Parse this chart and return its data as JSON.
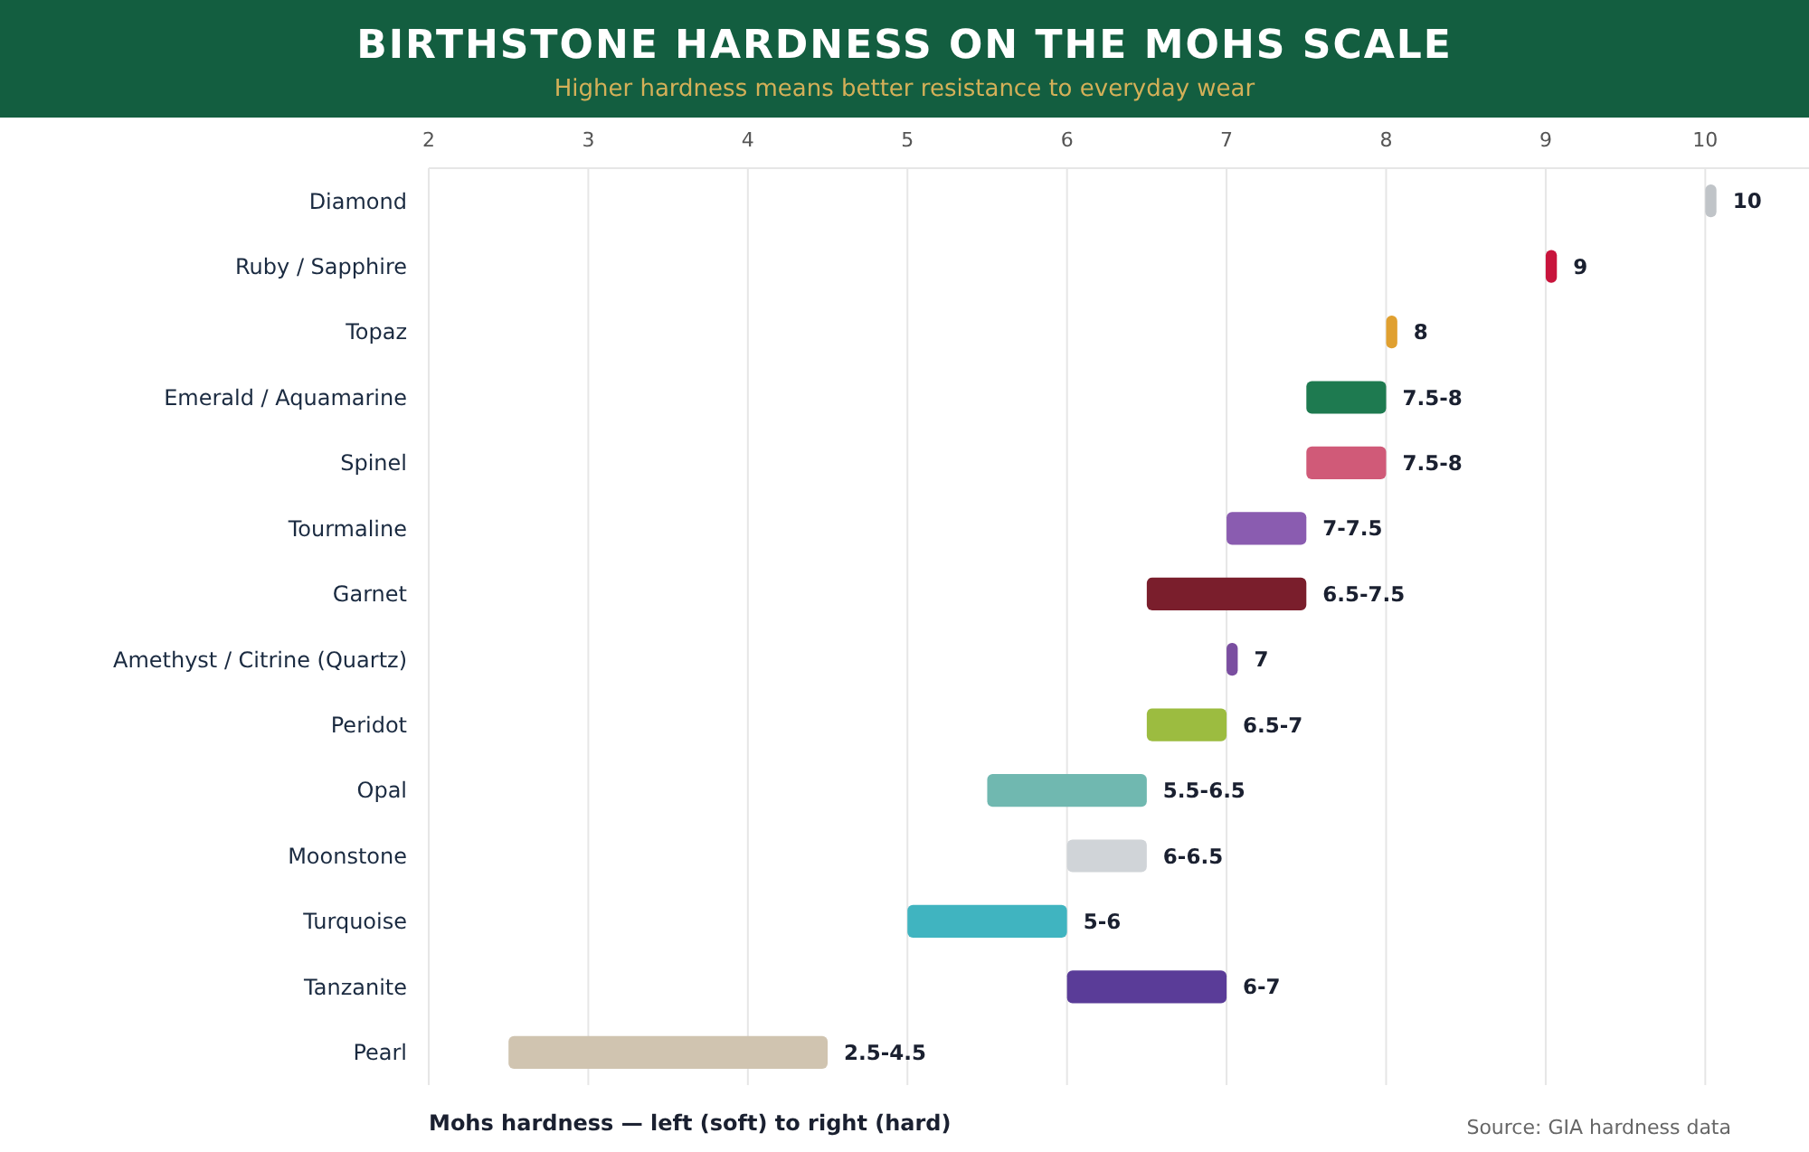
{
  "chart_data": {
    "type": "bar",
    "orientation": "horizontal",
    "title": "BIRTHSTONE HARDNESS ON THE MOHS SCALE",
    "subtitle": "Higher hardness means better resistance to everyday wear",
    "xlabel": "Mohs hardness — left (soft) to right (hard)",
    "annotations": [
      "Source: GIA hardness data"
    ],
    "categories": [
      "Diamond",
      "Ruby / Sapphire",
      "Topaz",
      "Emerald / Aquamarine",
      "Spinel",
      "Tourmaline",
      "Garnet",
      "Amethyst / Citrine (Quartz)",
      "Peridot",
      "Opal",
      "Moonstone",
      "Turquoise",
      "Tanzanite",
      "Pearl"
    ],
    "base": [
      10,
      9,
      8,
      7.5,
      7.5,
      7,
      6.5,
      7,
      6.5,
      5.5,
      6,
      5,
      6,
      2.5
    ],
    "values": [
      0.07,
      0.07,
      0.07,
      0.5,
      0.5,
      0.5,
      1,
      0.07,
      0.5,
      1,
      0.5,
      1,
      1,
      2
    ],
    "colors": [
      "#c0c4c8",
      "#c8143c",
      "#e0a030",
      "#1e7a50",
      "#d05a78",
      "#8a5cb0",
      "#7a1e2c",
      "#7a4ea0",
      "#9cbc40",
      "#70b8b0",
      "#d0d4d8",
      "#40b4c0",
      "#5a3c98",
      "#d0c4b0"
    ],
    "value_labels": [
      "10",
      "9",
      "8",
      "7.5-8",
      "7.5-8",
      "7-7.5",
      "6.5-7.5",
      "7",
      "6.5-7",
      "5.5-6.5",
      "6-6.5",
      "5-6",
      "6-7",
      "2.5-4.5"
    ],
    "xlim": [
      2,
      10.65
    ],
    "xticks": [
      2,
      3,
      4,
      5,
      6,
      7,
      8,
      9,
      10
    ],
    "grid": "x"
  }
}
